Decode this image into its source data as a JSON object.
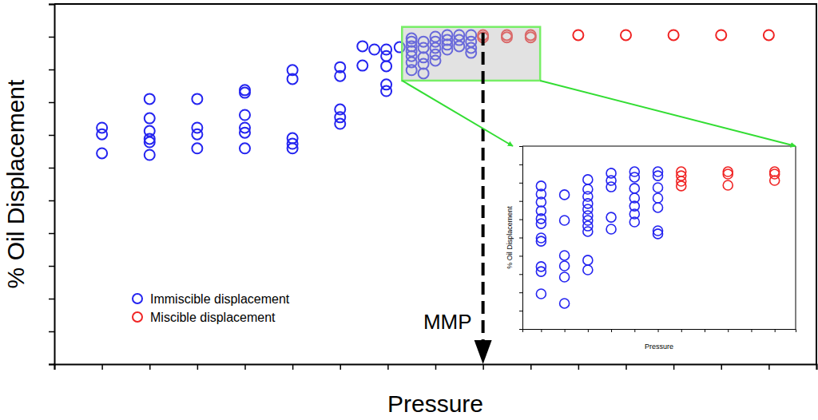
{
  "chart_data": [
    {
      "type": "scatter",
      "x_label": "Pressure",
      "y_label": "% Oil Displacement",
      "xlim": [
        0,
        16
      ],
      "ylim": [
        0,
        11
      ],
      "xticks": [
        0,
        1,
        2,
        3,
        4,
        5,
        6,
        7,
        8,
        9,
        10,
        11,
        12,
        13,
        14,
        15,
        16
      ],
      "yticks": [
        0,
        1,
        2,
        3,
        4,
        5,
        6,
        7,
        8,
        9,
        10,
        11
      ],
      "tick_labels": false,
      "legend": "lower left",
      "marker": "circle-open",
      "annotations": [
        {
          "text": "MMP",
          "x": 9.0
        }
      ],
      "zoom_box": {
        "xlim": [
          7.3,
          10.2
        ],
        "ylim": [
          8.66,
          10.3
        ]
      },
      "series": [
        {
          "name": "Immiscible displacement",
          "color": "#2424f0",
          "x": [
            1.0,
            1.0,
            1.0,
            2.0,
            2.0,
            2.0,
            2.0,
            2.0,
            2.0,
            3.0,
            3.0,
            3.0,
            3.0,
            4.0,
            4.0,
            4.0,
            4.0,
            4.0,
            4.0,
            5.0,
            5.0,
            5.0,
            5.0,
            5.0,
            6.0,
            6.0,
            6.0,
            6.0,
            6.0,
            6.47,
            6.47,
            6.72,
            6.97,
            6.97,
            6.97,
            6.97,
            6.97,
            7.25,
            7.5,
            7.5,
            7.5,
            7.5,
            7.5,
            7.5,
            7.5,
            7.75,
            7.75,
            7.75,
            7.75,
            7.75,
            8.0,
            8.0,
            8.0,
            8.0,
            8.0,
            8.25,
            8.25,
            8.25,
            8.25,
            8.5,
            8.5,
            8.5,
            8.75,
            8.75,
            8.75,
            8.75
          ],
          "values": [
            7.22,
            7.02,
            6.44,
            8.1,
            7.51,
            7.12,
            6.88,
            6.78,
            6.39,
            8.1,
            7.22,
            7.02,
            6.59,
            8.37,
            8.29,
            7.61,
            7.22,
            7.07,
            6.59,
            8.98,
            8.71,
            6.9,
            6.73,
            6.59,
            9.07,
            8.8,
            7.78,
            7.54,
            7.34,
            9.71,
            9.12,
            9.61,
            9.61,
            9.41,
            9.1,
            8.54,
            8.34,
            9.68,
            9.95,
            9.85,
            9.71,
            9.56,
            9.41,
            9.22,
            8.98,
            9.85,
            9.66,
            9.37,
            9.17,
            8.88,
            10.0,
            9.85,
            9.66,
            9.46,
            9.27,
            10.05,
            9.9,
            9.76,
            9.61,
            10.05,
            9.9,
            9.71,
            10.05,
            9.85,
            9.66,
            9.51
          ]
        },
        {
          "name": "Miscible displacement",
          "color": "#f02424",
          "x": [
            9.0,
            9.0,
            9.5,
            9.5,
            10.0,
            10.0,
            11.0,
            12.0,
            13.0,
            14.0,
            15.0
          ],
          "values": [
            10.05,
            9.98,
            10.05,
            9.98,
            10.05,
            9.98,
            10.05,
            10.05,
            10.05,
            10.05,
            10.05
          ]
        }
      ]
    },
    {
      "type": "scatter",
      "x_label": "Pressure",
      "y_label": "% Oil Displacement",
      "xlim": [
        -0.8,
        10.9
      ],
      "ylim": [
        0,
        10
      ],
      "xticks": [
        0,
        1,
        2,
        3,
        4,
        5,
        6,
        7,
        8,
        9,
        10
      ],
      "yticks": [
        0,
        1,
        2,
        3,
        4,
        5,
        6,
        7,
        8,
        9,
        10
      ],
      "tick_labels": false,
      "marker": "circle-open",
      "series": [
        {
          "color": "#2424f0",
          "x": [
            0,
            0,
            0,
            0,
            0,
            0,
            0,
            0,
            0,
            0,
            0,
            1,
            1,
            1,
            1,
            1,
            1,
            2,
            2,
            2,
            2,
            2,
            2,
            2,
            2,
            2,
            2,
            2,
            3,
            3,
            3,
            3,
            3,
            4,
            4,
            4,
            4,
            4,
            4,
            4,
            5,
            5,
            5,
            5,
            5,
            5,
            5
          ],
          "values": [
            7.82,
            7.38,
            6.94,
            6.46,
            6.03,
            5.76,
            4.98,
            4.8,
            3.41,
            3.14,
            1.92,
            7.34,
            5.94,
            4.02,
            3.45,
            2.84,
            1.4,
            8.17,
            7.64,
            7.25,
            6.86,
            6.55,
            6.2,
            5.94,
            5.63,
            5.33,
            3.76,
            3.23,
            8.52,
            8.12,
            7.77,
            6.11,
            5.46,
            8.6,
            8.3,
            7.69,
            7.16,
            6.72,
            6.29,
            5.85,
            8.6,
            8.38,
            7.73,
            7.16,
            6.64,
            5.37,
            5.2
          ]
        },
        {
          "color": "#f02424",
          "x": [
            6,
            6,
            6,
            6,
            8,
            8,
            8,
            10,
            10,
            10
          ],
          "values": [
            8.6,
            8.38,
            8.08,
            7.82,
            8.6,
            8.47,
            7.86,
            8.6,
            8.47,
            8.12
          ]
        }
      ]
    }
  ]
}
